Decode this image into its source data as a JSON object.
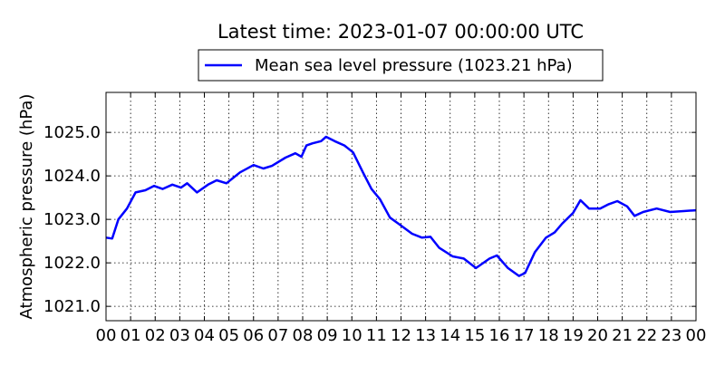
{
  "chart_data": {
    "type": "line",
    "title": "Latest time: 2023-01-07 00:00:00 UTC",
    "xlabel": "",
    "ylabel": "Atmospheric pressure (hPa)",
    "xlim": [
      0,
      24
    ],
    "ylim": [
      1020.67,
      1025.92
    ],
    "grid": true,
    "legend_position": "top-center-outside",
    "xticks": [
      "00",
      "01",
      "02",
      "03",
      "04",
      "05",
      "06",
      "07",
      "08",
      "09",
      "10",
      "11",
      "12",
      "13",
      "14",
      "15",
      "16",
      "17",
      "18",
      "19",
      "20",
      "21",
      "22",
      "23",
      "00"
    ],
    "yticks": [
      1021.0,
      1022.0,
      1023.0,
      1024.0,
      1025.0
    ],
    "ytick_labels": [
      "1021.0",
      "1022.0",
      "1023.0",
      "1024.0",
      "1025.0"
    ],
    "series": [
      {
        "name": "Mean sea level pressure (1023.21 hPa)",
        "color": "#0000ff",
        "x": [
          0,
          0.25,
          0.5,
          0.85,
          1.2,
          1.6,
          1.95,
          2.3,
          2.7,
          3.05,
          3.3,
          3.7,
          4.15,
          4.5,
          4.9,
          5.45,
          6.0,
          6.4,
          6.75,
          7.3,
          7.7,
          7.95,
          8.15,
          8.4,
          8.75,
          8.95,
          9.3,
          9.7,
          10.05,
          10.45,
          10.8,
          11.15,
          11.55,
          11.9,
          12.45,
          12.85,
          13.2,
          13.55,
          14.1,
          14.55,
          15.05,
          15.6,
          15.9,
          16.35,
          16.8,
          17.05,
          17.45,
          17.9,
          18.25,
          18.55,
          19.0,
          19.3,
          19.65,
          20.1,
          20.45,
          20.8,
          21.2,
          21.5,
          21.85,
          22.4,
          22.95,
          23.5,
          24
        ],
        "y": [
          1022.58,
          1022.56,
          1023.0,
          1023.25,
          1023.62,
          1023.67,
          1023.77,
          1023.7,
          1023.8,
          1023.73,
          1023.83,
          1023.62,
          1023.8,
          1023.9,
          1023.83,
          1024.08,
          1024.25,
          1024.17,
          1024.23,
          1024.42,
          1024.52,
          1024.44,
          1024.7,
          1024.75,
          1024.8,
          1024.9,
          1024.8,
          1024.7,
          1024.54,
          1024.08,
          1023.7,
          1023.46,
          1023.04,
          1022.9,
          1022.67,
          1022.58,
          1022.6,
          1022.35,
          1022.15,
          1022.1,
          1021.88,
          1022.1,
          1022.17,
          1021.88,
          1021.7,
          1021.77,
          1022.25,
          1022.58,
          1022.7,
          1022.9,
          1023.15,
          1023.44,
          1023.25,
          1023.25,
          1023.35,
          1023.42,
          1023.3,
          1023.08,
          1023.17,
          1023.25,
          1023.17,
          1023.19,
          1023.21
        ]
      }
    ]
  }
}
